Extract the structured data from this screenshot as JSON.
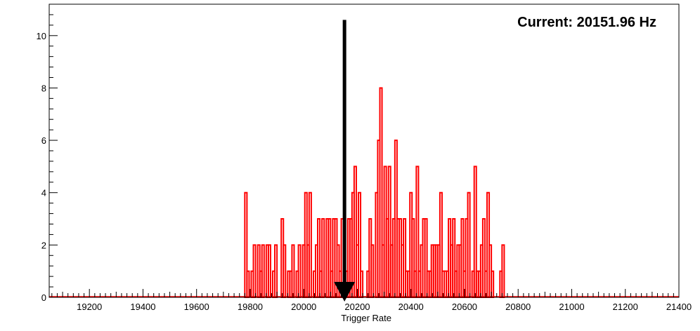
{
  "chart_data": {
    "type": "histogram",
    "title": "",
    "xlabel": "Trigger Rate",
    "ylabel": "",
    "xlim": [
      19050,
      21400
    ],
    "ylim": [
      0,
      11.2
    ],
    "x_ticks": [
      19200,
      19400,
      19600,
      19800,
      20000,
      20200,
      20400,
      20600,
      20800,
      21000,
      21200,
      21400
    ],
    "y_ticks": [
      0,
      2,
      4,
      6,
      8,
      10
    ],
    "grid": false,
    "legend": "none",
    "bin_start": 19780,
    "bin_width": 8,
    "series": [
      {
        "color": "#ff0000",
        "values": [
          4,
          1,
          0,
          1,
          2,
          0,
          2,
          1,
          2,
          0,
          2,
          2,
          0,
          1,
          2,
          0,
          0,
          3,
          2,
          0,
          1,
          1,
          2,
          0,
          1,
          2,
          0,
          2,
          4,
          2,
          4,
          0,
          1,
          2,
          3,
          1,
          3,
          0,
          3,
          3,
          1,
          3,
          3,
          2,
          1,
          3,
          1,
          1,
          3,
          3,
          4,
          5,
          2,
          4,
          1,
          0,
          0,
          1,
          3,
          2,
          0,
          4,
          6,
          8,
          2,
          5,
          3,
          5,
          2,
          3,
          6,
          3,
          3,
          2,
          3,
          1,
          1,
          4,
          3,
          1,
          5,
          1,
          2,
          3,
          3,
          1,
          1,
          2,
          2,
          2,
          2,
          4,
          1,
          1,
          1,
          3,
          2,
          3,
          1,
          2,
          2,
          3,
          1,
          3,
          4,
          0,
          1,
          5,
          1,
          1,
          2,
          3,
          1,
          4,
          2,
          1,
          0,
          0,
          0,
          1,
          2
        ]
      }
    ],
    "annotation": {
      "text": "Current: 20151.96 Hz",
      "marker_x": 20151.96,
      "marker_y_top": 10.6,
      "marker_color": "#000000"
    }
  }
}
